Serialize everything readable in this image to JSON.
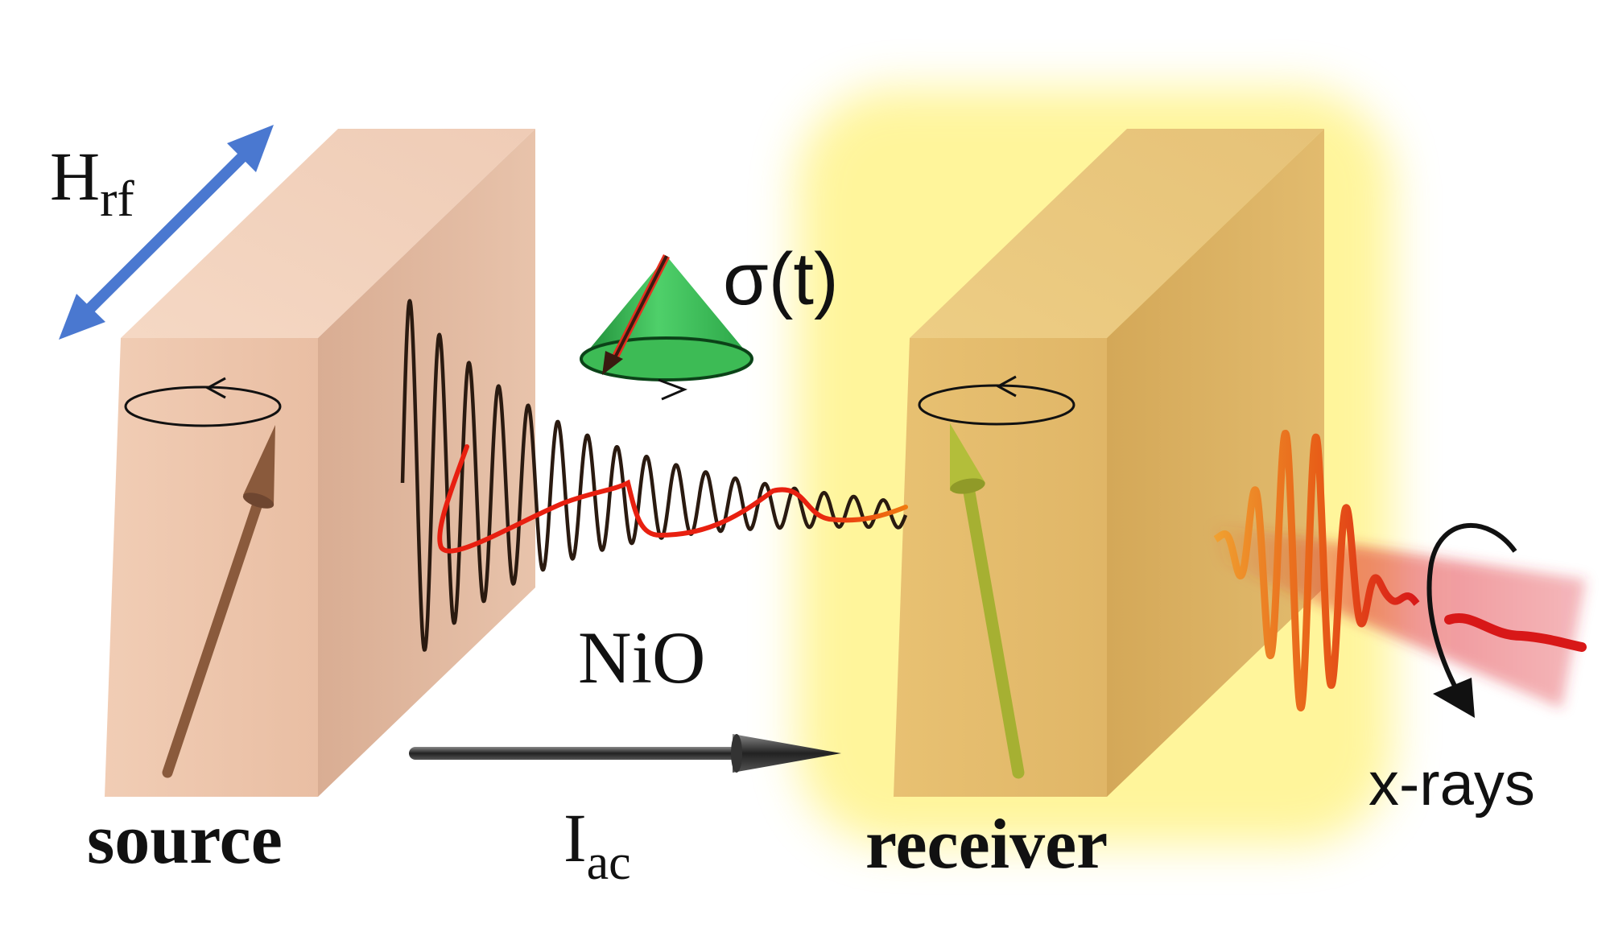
{
  "labels": {
    "field_main": "H",
    "field_sub": "rf",
    "precession": "σ(t)",
    "material": "NiO",
    "current_main": "I",
    "current_sub": "ac",
    "source": "source",
    "receiver": "receiver",
    "probe": "x-rays"
  },
  "colors": {
    "source_block": "#e8b89a",
    "receiver_block": "#dcae5c",
    "receiver_glow": "#fff27a",
    "field_arrow": "#4a78d0",
    "cone": "#3dbb55",
    "spin_wave": "#2a1a10",
    "red_trace": "#e81f10",
    "source_spin": "#8a5a3c",
    "receiver_spin": "#a6b032",
    "current_arrow": "#444444",
    "xray_beam": "#d81818"
  },
  "icons": {
    "field": "double-arrow-icon",
    "precession": "cone-icon",
    "current": "arrow-icon",
    "rotation": "curved-arrow-icon"
  }
}
